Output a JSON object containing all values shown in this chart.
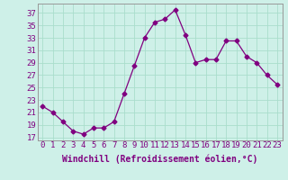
{
  "x": [
    0,
    1,
    2,
    3,
    4,
    5,
    6,
    7,
    8,
    9,
    10,
    11,
    12,
    13,
    14,
    15,
    16,
    17,
    18,
    19,
    20,
    21,
    22,
    23
  ],
  "y": [
    22,
    21,
    19.5,
    18,
    17.5,
    18.5,
    18.5,
    19.5,
    24,
    28.5,
    33,
    35.5,
    36,
    37.5,
    33.5,
    29,
    29.5,
    29.5,
    32.5,
    32.5,
    30,
    29,
    27,
    25.5
  ],
  "line_color": "#800080",
  "marker": "D",
  "marker_size": 2.5,
  "bg_color": "#cef0e8",
  "grid_color": "#aaddcc",
  "xlabel": "Windchill (Refroidissement éolien,°C)",
  "xlabel_fontsize": 7,
  "tick_fontsize": 6.5,
  "xlim": [
    -0.5,
    23.5
  ],
  "ylim": [
    16.5,
    38.5
  ],
  "yticks": [
    17,
    19,
    21,
    23,
    25,
    27,
    29,
    31,
    33,
    35,
    37
  ],
  "xticks": [
    0,
    1,
    2,
    3,
    4,
    5,
    6,
    7,
    8,
    9,
    10,
    11,
    12,
    13,
    14,
    15,
    16,
    17,
    18,
    19,
    20,
    21,
    22,
    23
  ]
}
